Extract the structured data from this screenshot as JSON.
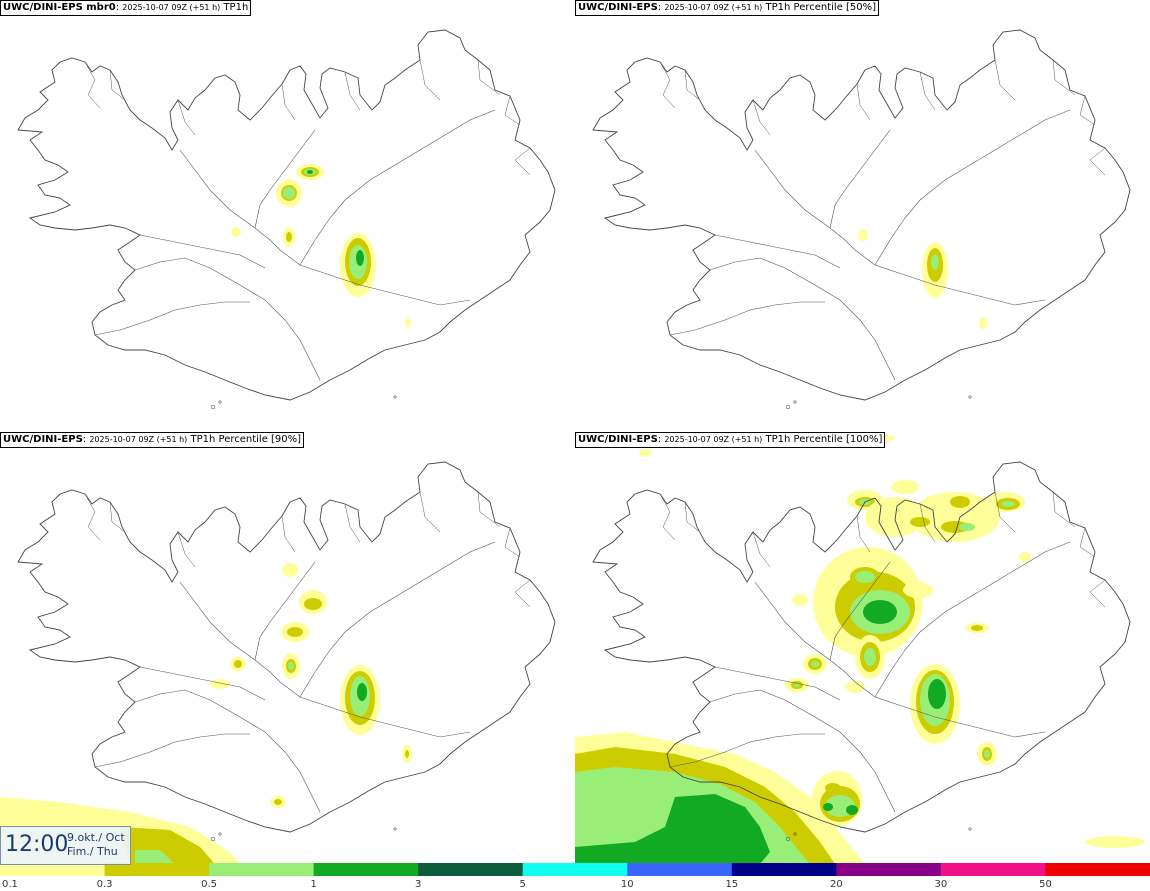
{
  "panels": [
    {
      "model": "UWC/DINI-EPS mbr0",
      "run": "2025-10-07 09Z (+51 h)",
      "field": "TP1h"
    },
    {
      "model": "UWC/DINI-EPS",
      "run": "2025-10-07 09Z (+51 h)",
      "field": "TP1h Percentile [50%]"
    },
    {
      "model": "UWC/DINI-EPS",
      "run": "2025-10-07 09Z (+51 h)",
      "field": "TP1h Percentile [90%]"
    },
    {
      "model": "UWC/DINI-EPS",
      "run": "2025-10-07 09Z (+51 h)",
      "field": "TP1h Percentile [100%]"
    }
  ],
  "time_box": {
    "time": "12:00",
    "date_line1": "9.okt./ Oct",
    "date_line2": "Fim./ Thu"
  },
  "legend": {
    "labels": [
      "0.1",
      "0.3",
      "0.5",
      "1",
      "3",
      "5",
      "10",
      "15",
      "20",
      "30",
      "50"
    ],
    "colors": [
      "#ffff99",
      "#cccc00",
      "#99ee77",
      "#11aa22",
      "#0c5c3c",
      "#11ffee",
      "#3a66ff",
      "#000088",
      "#880088",
      "#ee1188",
      "#ee0000"
    ]
  }
}
